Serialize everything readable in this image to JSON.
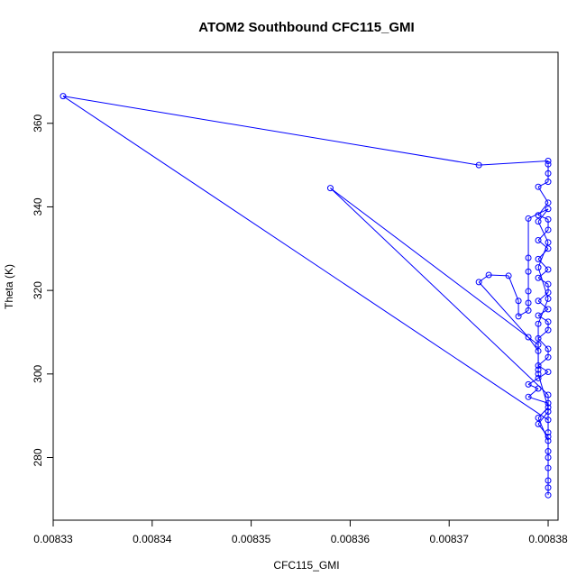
{
  "chart_data": {
    "type": "scatter",
    "title": "ATOM2 Southbound CFC115_GMI",
    "xlabel": "CFC115_GMI",
    "ylabel": "Theta (K)",
    "xlim": [
      0.00833,
      0.008381
    ],
    "ylim": [
      265,
      377
    ],
    "x_ticks": [
      "0.00833",
      "0.00834",
      "0.00835",
      "0.00836",
      "0.00837",
      "0.00838"
    ],
    "x_tick_values": [
      0.00833,
      0.00834,
      0.00835,
      0.00836,
      0.00837,
      0.00838
    ],
    "y_ticks": [
      "280",
      "300",
      "320",
      "340",
      "360"
    ],
    "y_tick_values": [
      280,
      300,
      320,
      340,
      360
    ],
    "series_color": "#0000ff",
    "marker": "open-circle",
    "connected_lines": true,
    "grid": false,
    "legend": "none",
    "points": [
      [
        0.00838,
        271.0
      ],
      [
        0.00838,
        272.8
      ],
      [
        0.00838,
        274.5
      ],
      [
        0.00838,
        277.5
      ],
      [
        0.00838,
        281.5
      ],
      [
        0.00838,
        285.0
      ],
      [
        0.008379,
        288.0
      ],
      [
        0.00838,
        291.0
      ],
      [
        0.00838,
        293.0
      ],
      [
        0.008378,
        294.5
      ],
      [
        0.008379,
        296.5
      ],
      [
        0.008378,
        297.5
      ],
      [
        0.008379,
        299.0
      ],
      [
        0.00838,
        300.5
      ],
      [
        0.008379,
        302.0
      ],
      [
        0.00838,
        304.0
      ],
      [
        0.00838,
        306.0
      ],
      [
        0.008379,
        308.5
      ],
      [
        0.00838,
        310.5
      ],
      [
        0.00838,
        312.5
      ],
      [
        0.008379,
        314.0
      ],
      [
        0.00838,
        315.5
      ],
      [
        0.008379,
        317.5
      ],
      [
        0.00838,
        319.5
      ],
      [
        0.00838,
        321.5
      ],
      [
        0.008379,
        323.0
      ],
      [
        0.00838,
        325.0
      ],
      [
        0.008379,
        327.5
      ],
      [
        0.00838,
        330.0
      ],
      [
        0.008379,
        332.0
      ],
      [
        0.00838,
        334.5
      ],
      [
        0.00838,
        337.0
      ],
      [
        0.008379,
        338.0
      ],
      [
        0.00838,
        341.0
      ],
      [
        0.008379,
        344.8
      ],
      [
        0.00838,
        346.0
      ],
      [
        0.00838,
        348.0
      ],
      [
        0.00838,
        350.2
      ],
      [
        0.00838,
        351.0
      ],
      [
        0.008373,
        350.0
      ],
      [
        0.008331,
        366.5
      ],
      [
        0.00838,
        289.0
      ],
      [
        0.00838,
        286.0
      ],
      [
        0.00838,
        295.0
      ],
      [
        0.008358,
        344.5
      ],
      [
        0.008379,
        307.0
      ],
      [
        0.008379,
        301.0
      ],
      [
        0.008379,
        312.0
      ],
      [
        0.00838,
        318.0
      ],
      [
        0.008379,
        325.5
      ],
      [
        0.00838,
        331.5
      ],
      [
        0.008379,
        336.5
      ],
      [
        0.00838,
        339.5
      ],
      [
        0.008378,
        337.2
      ],
      [
        0.008378,
        327.8
      ],
      [
        0.008378,
        324.5
      ],
      [
        0.008378,
        319.8
      ],
      [
        0.008378,
        317.0
      ],
      [
        0.008378,
        315.2
      ],
      [
        0.008377,
        313.8
      ],
      [
        0.008377,
        317.5
      ],
      [
        0.008376,
        323.5
      ],
      [
        0.008374,
        323.7
      ],
      [
        0.008373,
        322.0
      ],
      [
        0.008378,
        308.8
      ],
      [
        0.008379,
        305.5
      ],
      [
        0.008379,
        300.0
      ],
      [
        0.00838,
        292.0
      ],
      [
        0.008379,
        289.5
      ],
      [
        0.00838,
        284.0
      ],
      [
        0.00838,
        280.0
      ]
    ]
  }
}
